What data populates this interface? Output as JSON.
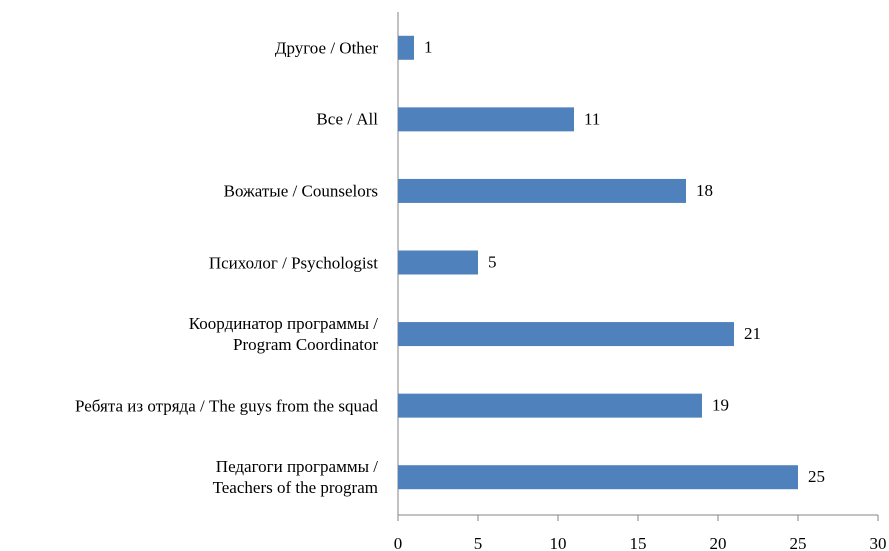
{
  "chart_data": {
    "type": "barh",
    "categories": [
      "Другое / Other",
      "Все / All",
      "Вожатые / Counselors",
      "Психолог / Psychologist",
      "Координатор программы /\nProgram Coordinator",
      "Ребята из отряда / The guys from the squad",
      "Педагоги программы /\nTeachers of the program"
    ],
    "values": [
      1,
      11,
      18,
      5,
      21,
      19,
      25
    ],
    "color": "#4f81bd",
    "xlim": [
      0,
      30
    ],
    "xticks": [
      0,
      5,
      10,
      15,
      20,
      25,
      30
    ],
    "grid": false
  }
}
